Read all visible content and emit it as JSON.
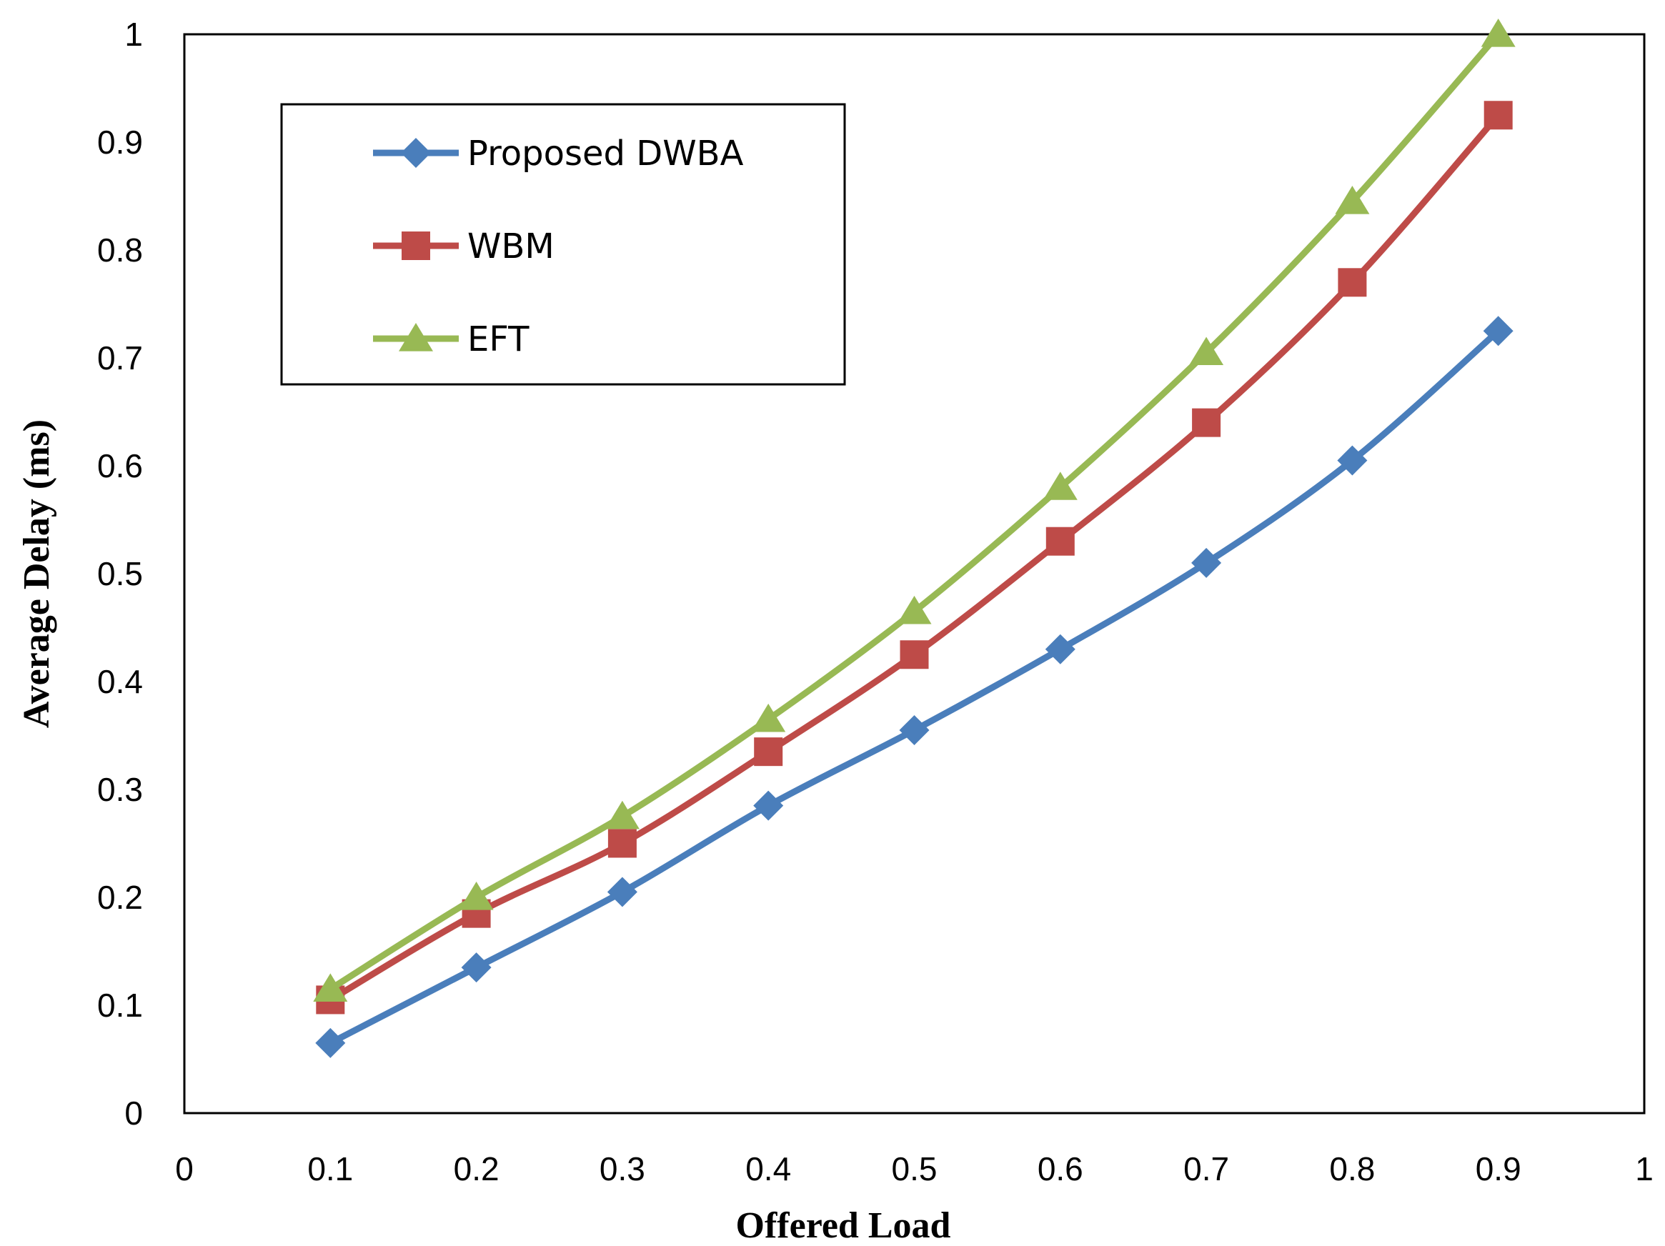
{
  "chart_data": {
    "type": "line",
    "xlabel": "Offered Load",
    "ylabel": "Average Delay (ms)",
    "xlim": [
      0,
      1
    ],
    "ylim": [
      0,
      1
    ],
    "xticks": [
      "0",
      "0.1",
      "0.2",
      "0.3",
      "0.4",
      "0.5",
      "0.6",
      "0.7",
      "0.8",
      "0.9",
      "1"
    ],
    "yticks": [
      "0",
      "0.1",
      "0.2",
      "0.3",
      "0.4",
      "0.5",
      "0.6",
      "0.7",
      "0.8",
      "0.9",
      "1"
    ],
    "grid": false,
    "legend_position": "top-left",
    "x": [
      0.1,
      0.2,
      0.3,
      0.4,
      0.5,
      0.6,
      0.7,
      0.8,
      0.9
    ],
    "series": [
      {
        "name": "Proposed DWBA",
        "color": "#4a7ebb",
        "marker": "diamond",
        "values": [
          0.065,
          0.135,
          0.205,
          0.285,
          0.355,
          0.43,
          0.51,
          0.605,
          0.725
        ]
      },
      {
        "name": "WBM",
        "color": "#be4b48",
        "marker": "square",
        "values": [
          0.105,
          0.185,
          0.25,
          0.335,
          0.425,
          0.53,
          0.64,
          0.77,
          0.925
        ]
      },
      {
        "name": "EFT",
        "color": "#98b954",
        "marker": "triangle",
        "values": [
          0.115,
          0.2,
          0.275,
          0.365,
          0.465,
          0.58,
          0.705,
          0.845,
          1.0
        ]
      }
    ]
  }
}
